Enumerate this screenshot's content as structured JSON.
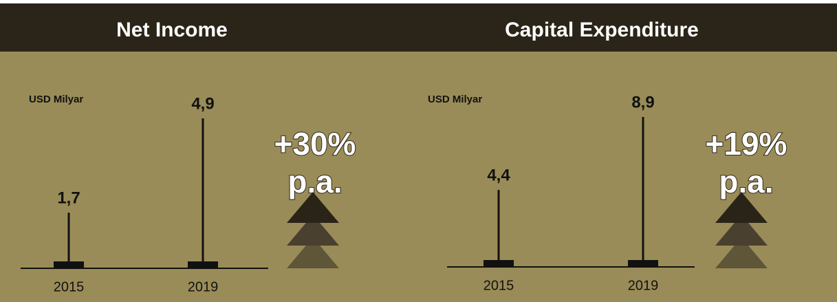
{
  "chart_data": [
    {
      "type": "pictograph",
      "title": "Net Income",
      "y_label": "USD Milyar",
      "categories": [
        "2015",
        "2019"
      ],
      "values": [
        1.7,
        4.9
      ],
      "value_labels": [
        "1,7",
        "4,9"
      ],
      "annotations": [
        "+30%",
        "p.a."
      ],
      "color": "#111111"
    },
    {
      "type": "pictograph",
      "title": "Capital Expenditure",
      "y_label": "USD Milyar",
      "categories": [
        "2015",
        "2019"
      ],
      "values": [
        4.4,
        8.9
      ],
      "value_labels": [
        "4,4",
        "8,9"
      ],
      "annotations": [
        "+19%",
        "p.a."
      ],
      "color": "#111111"
    }
  ]
}
